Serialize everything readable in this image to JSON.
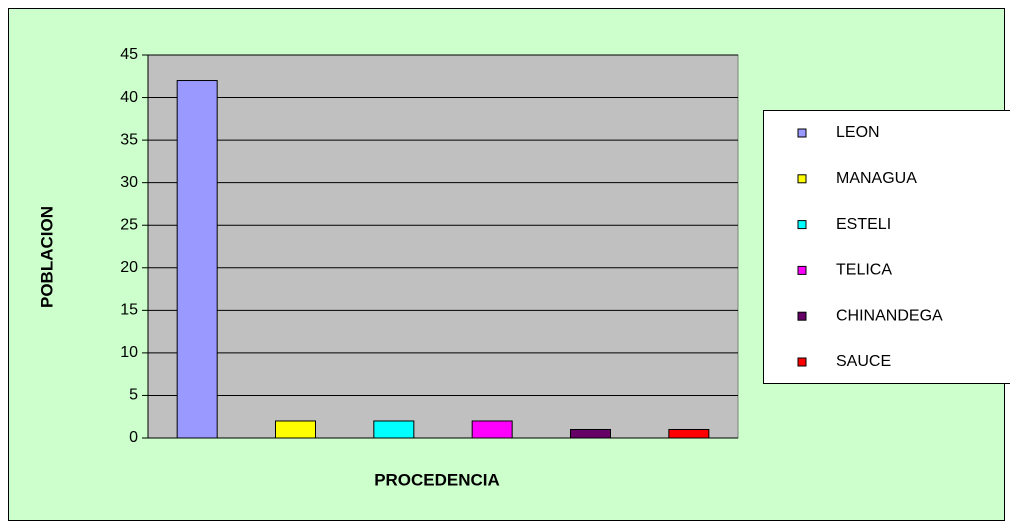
{
  "chart_data": {
    "type": "bar",
    "y_axis_label": "POBLACION",
    "x_axis_label": "PROCEDENCIA",
    "categories": [
      "LEON",
      "MANAGUA",
      "ESTELI",
      "TELICA",
      "CHINANDEGA",
      "SAUCE"
    ],
    "values": [
      42,
      2,
      2,
      2,
      1,
      1
    ],
    "colors": [
      "#9999ff",
      "#ffff00",
      "#00ffff",
      "#ff00ff",
      "#660066",
      "#ff0000"
    ],
    "ylim": [
      0,
      45
    ],
    "yticks": [
      0,
      5,
      10,
      15,
      20,
      25,
      30,
      35,
      40,
      45
    ],
    "grid": true,
    "legend": "right"
  }
}
